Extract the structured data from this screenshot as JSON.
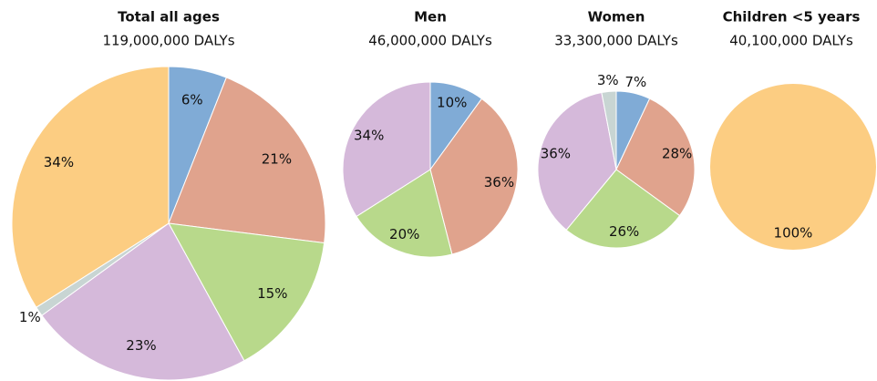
{
  "chart_data": [
    {
      "type": "pie",
      "title": "Total all ages",
      "subtitle": "119,000,000 DALYs",
      "values": [
        6,
        21,
        15,
        23,
        1,
        34
      ],
      "value_labels": [
        "6%",
        "21%",
        "15%",
        "23%",
        "1%",
        "34%"
      ],
      "colors": [
        "#80abd6",
        "#e0a38d",
        "#b8d98b",
        "#d5b9da",
        "#c8d5d3",
        "#fccd82"
      ]
    },
    {
      "type": "pie",
      "title": "Men",
      "subtitle": "46,000,000 DALYs",
      "values": [
        10,
        36,
        20,
        34
      ],
      "value_labels": [
        "10%",
        "36%",
        "20%",
        "34%"
      ],
      "colors": [
        "#80abd6",
        "#e0a38d",
        "#b8d98b",
        "#d5b9da"
      ]
    },
    {
      "type": "pie",
      "title": "Women",
      "subtitle": "33,300,000 DALYs",
      "values": [
        7,
        28,
        26,
        36,
        3
      ],
      "value_labels": [
        "7%",
        "28%",
        "26%",
        "36%",
        "3%"
      ],
      "colors": [
        "#80abd6",
        "#e0a38d",
        "#b8d98b",
        "#d5b9da",
        "#c8d5d3"
      ]
    },
    {
      "type": "pie",
      "title": "Children <5 years",
      "subtitle": "40,100,000 DALYs",
      "values": [
        100
      ],
      "value_labels": [
        "100%"
      ],
      "colors": [
        "#fccd82"
      ]
    }
  ]
}
